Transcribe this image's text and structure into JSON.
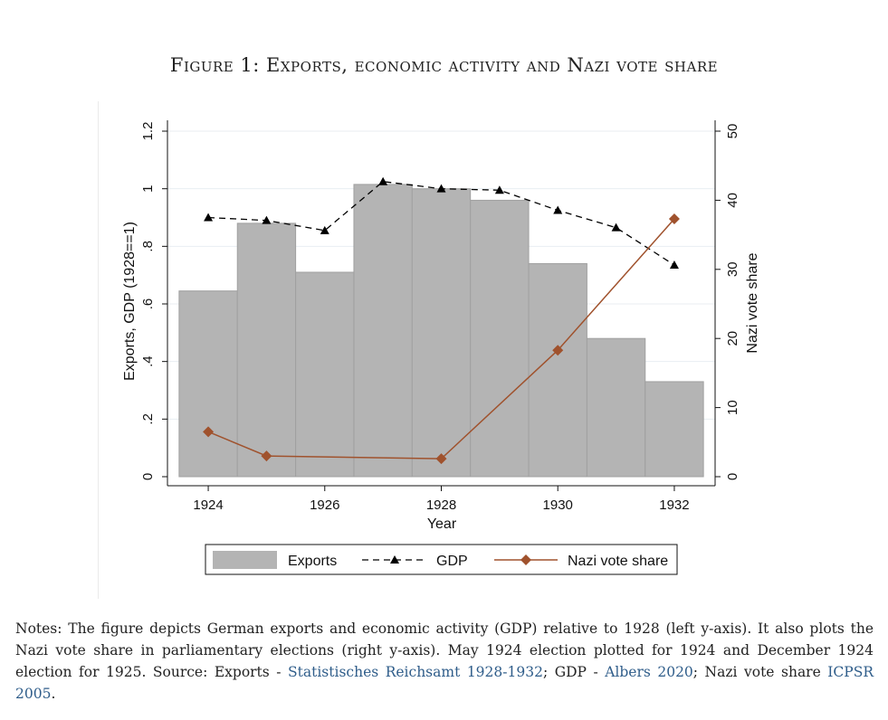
{
  "figure": {
    "title": "Figure 1: Exports, economic activity and Nazi vote share"
  },
  "chart_data": {
    "type": "bar",
    "title": "Figure 1: Exports, economic activity and Nazi vote share",
    "xlabel": "Year",
    "ylabel": "Exports, GDP (1928==1)",
    "y2label": "Nazi vote share",
    "x_ticks": [
      "1924",
      "1926",
      "1928",
      "1930",
      "1932"
    ],
    "xlim": [
      1923.3,
      1932.7
    ],
    "ylim": [
      0,
      1.2
    ],
    "y_ticks": [
      "0",
      ".2",
      ".4",
      ".6",
      ".8",
      "1",
      "1.2"
    ],
    "y2lim": [
      0,
      50
    ],
    "y2_ticks": [
      "0",
      "10",
      "20",
      "30",
      "40",
      "50"
    ],
    "grid": true,
    "legend_position": "bottom",
    "series": [
      {
        "name": "Exports",
        "type": "bar",
        "axis": "left",
        "color": "#b4b4b4",
        "x": [
          1924,
          1925,
          1926,
          1927,
          1928,
          1929,
          1930,
          1931,
          1932
        ],
        "values": [
          0.645,
          0.88,
          0.71,
          1.015,
          1.0,
          0.96,
          0.74,
          0.48,
          0.33
        ]
      },
      {
        "name": "GDP",
        "type": "line",
        "style": "dashed",
        "marker": "triangle",
        "axis": "left",
        "color": "#000000",
        "x": [
          1924,
          1925,
          1926,
          1927,
          1928,
          1929,
          1930,
          1931,
          1932
        ],
        "values": [
          0.9,
          0.89,
          0.855,
          1.025,
          1.0,
          0.995,
          0.925,
          0.865,
          0.735
        ]
      },
      {
        "name": "Nazi vote share",
        "type": "line",
        "marker": "diamond",
        "axis": "right",
        "color": "#a0522d",
        "x": [
          1924,
          1925,
          1928,
          1930,
          1932
        ],
        "values": [
          6.5,
          3.0,
          2.6,
          18.3,
          37.3
        ]
      }
    ]
  },
  "notes": {
    "text1": "Notes: The figure depicts German exports and economic activity (GDP) relative to 1928 (left y-axis). It also plots the Nazi vote share in parliamentary elections (right y-axis). May 1924 election plotted for 1924 and December 1924 election for 1925. Source: Exports - ",
    "link1": "Statistisches Reichsamt 1928-1932",
    "text2": "; GDP - ",
    "link2": "Albers 2020",
    "text3": "; Nazi vote share ",
    "link3": "ICPSR 2005",
    "text4": "."
  }
}
